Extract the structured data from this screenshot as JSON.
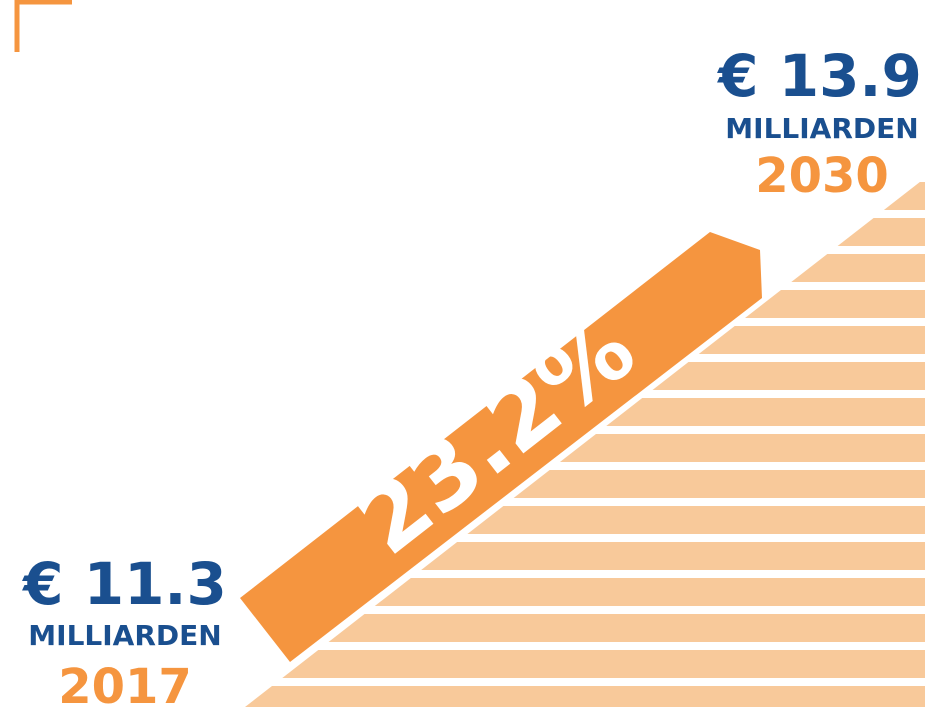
{
  "start": {
    "amount": "€ 11.3",
    "unit": "MILLIARDEN",
    "year": "2017"
  },
  "end": {
    "amount": "€ 13.9",
    "unit": "MILLIARDEN",
    "year": "2030"
  },
  "growth": "23.2%"
}
